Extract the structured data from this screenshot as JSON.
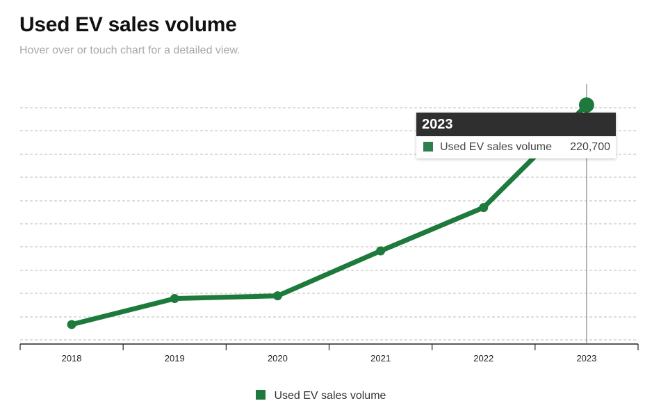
{
  "title": "Used EV sales volume",
  "subtitle": "Hover over or touch chart for a detailed view.",
  "colors": {
    "series": "#1e7a3c",
    "tooltip_header_bg": "#2f2f2f",
    "gridline": "#bbbbbb"
  },
  "tooltip": {
    "title": "2023",
    "series_label": "Used EV sales volume",
    "value": "220,700"
  },
  "legend": {
    "label": "Used EV sales volume",
    "position": "bottom-center"
  },
  "chart_data": {
    "type": "line",
    "title": "Used EV sales volume",
    "xlabel": "",
    "ylabel": "",
    "x": [
      "2018",
      "2019",
      "2020",
      "2021",
      "2022",
      "2023"
    ],
    "series": [
      {
        "name": "Used EV sales volume",
        "values": [
          18000,
          42000,
          44500,
          86000,
          126000,
          220700
        ]
      }
    ],
    "ylim": [
      0,
      240000
    ],
    "grid": true,
    "highlighted_point": {
      "x": "2023",
      "value": 220700
    }
  }
}
